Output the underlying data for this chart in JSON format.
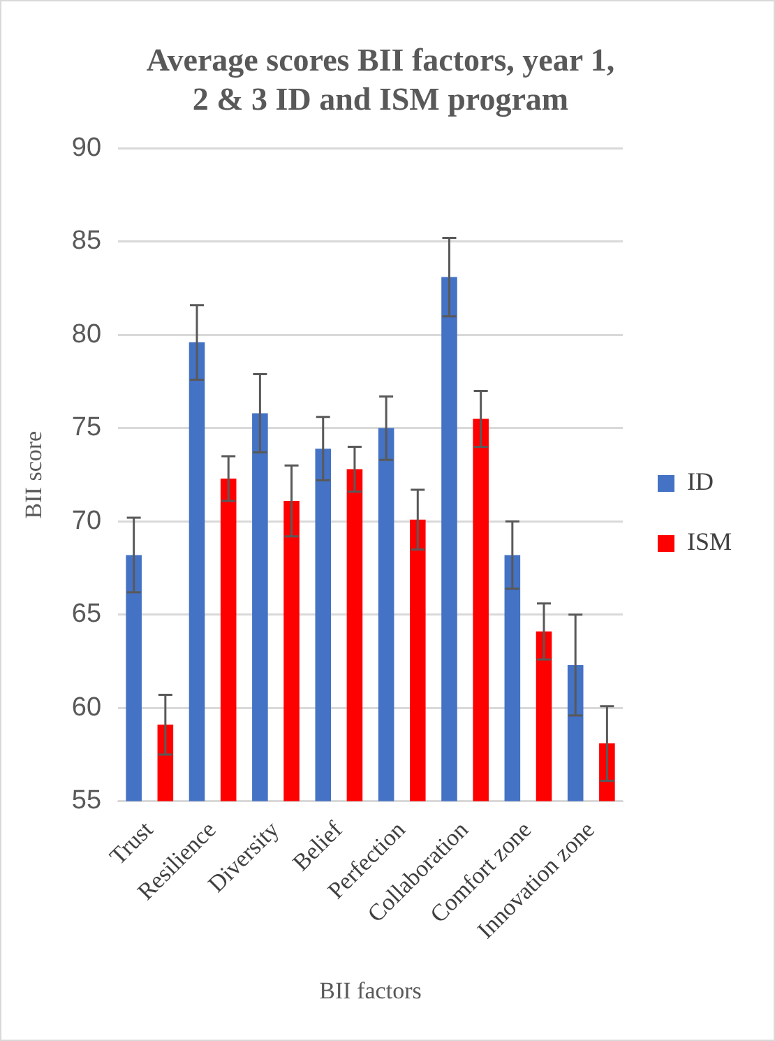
{
  "chart_data": {
    "type": "bar",
    "title": "Average scores BII factors, year 1, 2 & 3 ID and ISM program",
    "xlabel": "BII factors",
    "ylabel": "BII score",
    "categories": [
      "Trust",
      "Resilience",
      "Diversity",
      "Belief",
      "Perfection",
      "Collaboration",
      "Comfort zone",
      "Innovation zone"
    ],
    "series": [
      {
        "name": "ID",
        "color": "#4472c4",
        "values": [
          68.2,
          79.6,
          75.8,
          73.9,
          75.0,
          83.1,
          68.2,
          62.3
        ],
        "errors": [
          2.0,
          2.0,
          2.1,
          1.7,
          1.7,
          2.1,
          1.8,
          2.7
        ]
      },
      {
        "name": "ISM",
        "color": "#ff0000",
        "values": [
          59.1,
          72.3,
          71.1,
          72.8,
          70.1,
          75.5,
          64.1,
          58.1
        ],
        "errors": [
          1.6,
          1.2,
          1.9,
          1.2,
          1.6,
          1.5,
          1.5,
          2.0
        ]
      }
    ],
    "ylim": [
      55,
      90
    ],
    "yticks": [
      55,
      60,
      65,
      70,
      75,
      80,
      85,
      90
    ],
    "grid": "y",
    "legend": "right"
  }
}
